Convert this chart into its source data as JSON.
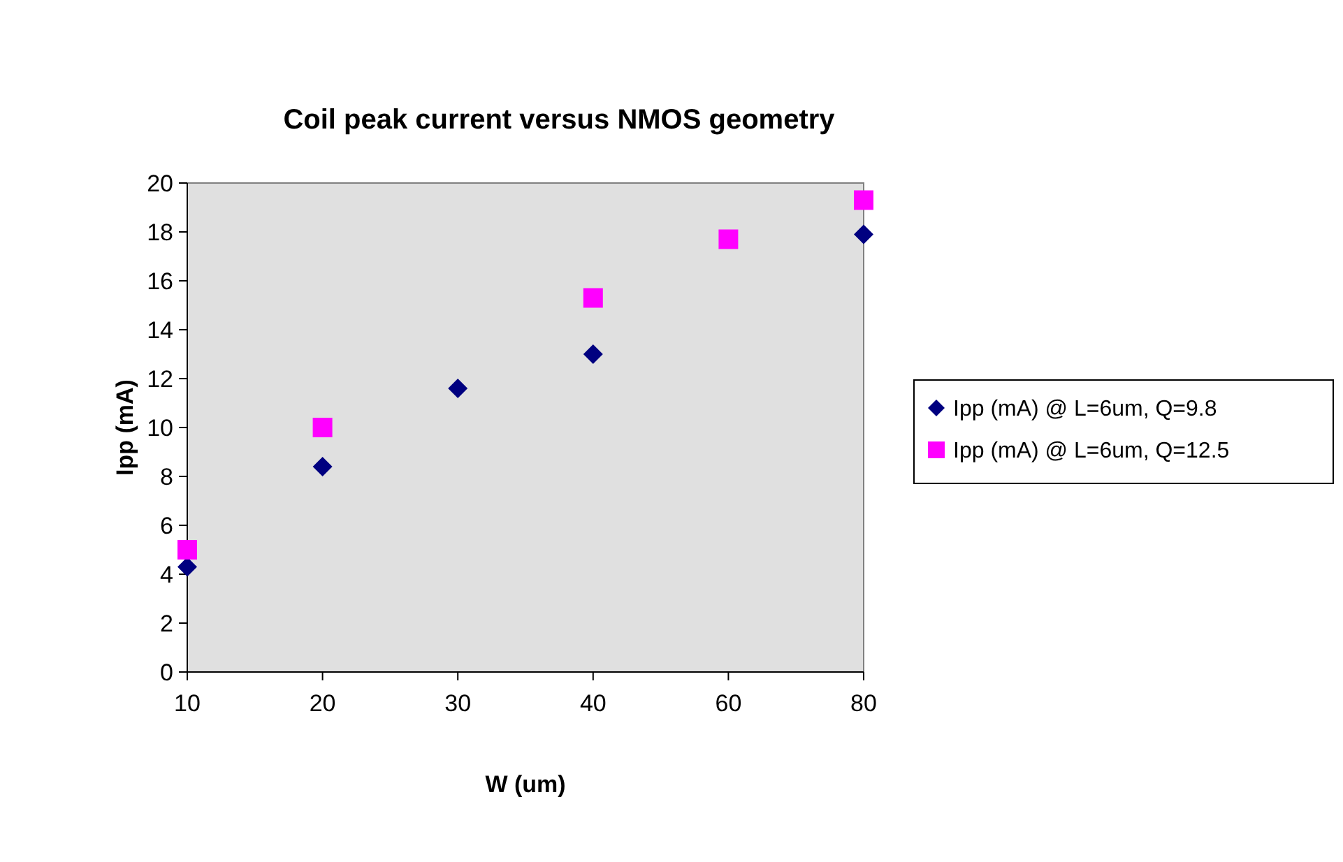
{
  "chart_data": {
    "type": "scatter",
    "title": "Coil peak current versus NMOS geometry",
    "xlabel": "W (um)",
    "ylabel": "Ipp (mA)",
    "categories": [
      "10",
      "20",
      "30",
      "40",
      "60",
      "80"
    ],
    "series": [
      {
        "name": "Ipp (mA) @ L=6um, Q=9.8",
        "color": "#000080",
        "marker": "diamond",
        "values": [
          4.3,
          8.4,
          11.6,
          13.0,
          null,
          17.9
        ]
      },
      {
        "name": "Ipp (mA) @ L=6um, Q=12.5",
        "color": "#ff00ff",
        "marker": "square",
        "values": [
          5.0,
          10.0,
          null,
          15.3,
          17.7,
          19.3
        ]
      }
    ],
    "ylim": [
      0,
      20
    ],
    "yticks": [
      0,
      2,
      4,
      6,
      8,
      10,
      12,
      14,
      16,
      18,
      20
    ],
    "grid": false,
    "legend": "right"
  }
}
